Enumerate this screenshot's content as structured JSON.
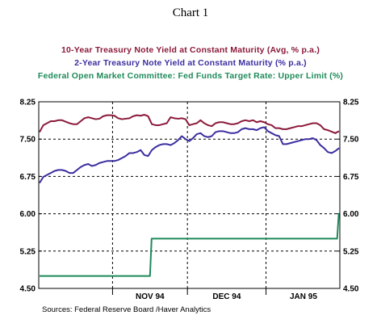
{
  "chart_data": {
    "type": "line",
    "title": "Chart 1",
    "source": "Sources:  Federal Reserve Board /Haver Analytics",
    "x_tick_labels": [
      "NOV 94",
      "DEC 94",
      "JAN 95"
    ],
    "ylim": [
      4.5,
      8.25
    ],
    "y_ticks": [
      "8.25",
      "7.50",
      "6.75",
      "6.00",
      "5.25",
      "4.50"
    ],
    "grid": true,
    "legend_placement": "top",
    "x": [
      "1994-10-03",
      "1994-10-04",
      "1994-10-05",
      "1994-10-06",
      "1994-10-07",
      "1994-10-11",
      "1994-10-12",
      "1994-10-13",
      "1994-10-14",
      "1994-10-17",
      "1994-10-18",
      "1994-10-19",
      "1994-10-20",
      "1994-10-21",
      "1994-10-24",
      "1994-10-25",
      "1994-10-26",
      "1994-10-27",
      "1994-10-28",
      "1994-10-31",
      "1994-11-01",
      "1994-11-02",
      "1994-11-03",
      "1994-11-04",
      "1994-11-07",
      "1994-11-08",
      "1994-11-09",
      "1994-11-10",
      "1994-11-14",
      "1994-11-15",
      "1994-11-16",
      "1994-11-17",
      "1994-11-18",
      "1994-11-21",
      "1994-11-22",
      "1994-11-23",
      "1994-11-25",
      "1994-11-28",
      "1994-11-29",
      "1994-11-30",
      "1994-12-01",
      "1994-12-02",
      "1994-12-05",
      "1994-12-06",
      "1994-12-07",
      "1994-12-08",
      "1994-12-09",
      "1994-12-12",
      "1994-12-13",
      "1994-12-14",
      "1994-12-15",
      "1994-12-16",
      "1994-12-19",
      "1994-12-20",
      "1994-12-21",
      "1994-12-22",
      "1994-12-23",
      "1994-12-27",
      "1994-12-28",
      "1994-12-29",
      "1994-12-30",
      "1995-01-03",
      "1995-01-04",
      "1995-01-05",
      "1995-01-06",
      "1995-01-09",
      "1995-01-10",
      "1995-01-11",
      "1995-01-12",
      "1995-01-13",
      "1995-01-17",
      "1995-01-18",
      "1995-01-19",
      "1995-01-20",
      "1995-01-23",
      "1995-01-24",
      "1995-01-25",
      "1995-01-26",
      "1995-01-27",
      "1995-01-30",
      "1995-01-31"
    ],
    "series": [
      {
        "name": "10-Year Treasury Note Yield at Constant Maturity (Avg, % p.a.)",
        "color": "#8b1a3a",
        "values": [
          7.64,
          7.78,
          7.82,
          7.86,
          7.86,
          7.88,
          7.88,
          7.85,
          7.82,
          7.8,
          7.8,
          7.86,
          7.92,
          7.94,
          7.92,
          7.9,
          7.91,
          7.96,
          7.98,
          7.98,
          7.97,
          7.92,
          7.9,
          7.91,
          7.92,
          7.96,
          7.98,
          7.97,
          7.99,
          7.96,
          7.8,
          7.78,
          7.78,
          7.8,
          7.82,
          7.94,
          7.92,
          7.91,
          7.92,
          7.9,
          7.78,
          7.8,
          7.82,
          7.88,
          7.82,
          7.78,
          7.76,
          7.82,
          7.84,
          7.84,
          7.82,
          7.8,
          7.8,
          7.82,
          7.86,
          7.88,
          7.86,
          7.88,
          7.84,
          7.86,
          7.84,
          7.8,
          7.78,
          7.72,
          7.72,
          7.7,
          7.7,
          7.72,
          7.74,
          7.76,
          7.76,
          7.78,
          7.8,
          7.82,
          7.82,
          7.78,
          7.7,
          7.68,
          7.65,
          7.62,
          7.66
        ]
      },
      {
        "name": "2-Year Treasury Note Yield at Constant Maturity (% p.a.)",
        "color": "#3a2ea0",
        "values": [
          6.62,
          6.74,
          6.78,
          6.82,
          6.86,
          6.88,
          6.88,
          6.86,
          6.82,
          6.82,
          6.88,
          6.94,
          6.98,
          7.0,
          6.96,
          6.98,
          7.02,
          7.04,
          7.06,
          7.06,
          7.06,
          7.08,
          7.12,
          7.16,
          7.22,
          7.22,
          7.24,
          7.28,
          7.18,
          7.16,
          7.28,
          7.34,
          7.38,
          7.4,
          7.4,
          7.38,
          7.42,
          7.48,
          7.56,
          7.5,
          7.46,
          7.52,
          7.6,
          7.62,
          7.56,
          7.54,
          7.56,
          7.64,
          7.66,
          7.66,
          7.64,
          7.62,
          7.62,
          7.64,
          7.7,
          7.72,
          7.7,
          7.7,
          7.68,
          7.72,
          7.74,
          7.66,
          7.62,
          7.58,
          7.56,
          7.4,
          7.4,
          7.42,
          7.44,
          7.46,
          7.48,
          7.5,
          7.5,
          7.52,
          7.48,
          7.38,
          7.32,
          7.24,
          7.22,
          7.26,
          7.32
        ]
      },
      {
        "name": "Federal Open Market Committee: Fed Funds Target Rate: Upper Limit (%)",
        "color": "#1f8a5a",
        "values": [
          4.75,
          4.75,
          4.75,
          4.75,
          4.75,
          4.75,
          4.75,
          4.75,
          4.75,
          4.75,
          4.75,
          4.75,
          4.75,
          4.75,
          4.75,
          4.75,
          4.75,
          4.75,
          4.75,
          4.75,
          4.75,
          4.75,
          4.75,
          4.75,
          4.75,
          4.75,
          4.75,
          4.75,
          4.75,
          4.75,
          5.5,
          5.5,
          5.5,
          5.5,
          5.5,
          5.5,
          5.5,
          5.5,
          5.5,
          5.5,
          5.5,
          5.5,
          5.5,
          5.5,
          5.5,
          5.5,
          5.5,
          5.5,
          5.5,
          5.5,
          5.5,
          5.5,
          5.5,
          5.5,
          5.5,
          5.5,
          5.5,
          5.5,
          5.5,
          5.5,
          5.5,
          5.5,
          5.5,
          5.5,
          5.5,
          5.5,
          5.5,
          5.5,
          5.5,
          5.5,
          5.5,
          5.5,
          5.5,
          5.5,
          5.5,
          5.5,
          5.5,
          5.5,
          5.5,
          5.5,
          6.0
        ]
      }
    ]
  }
}
